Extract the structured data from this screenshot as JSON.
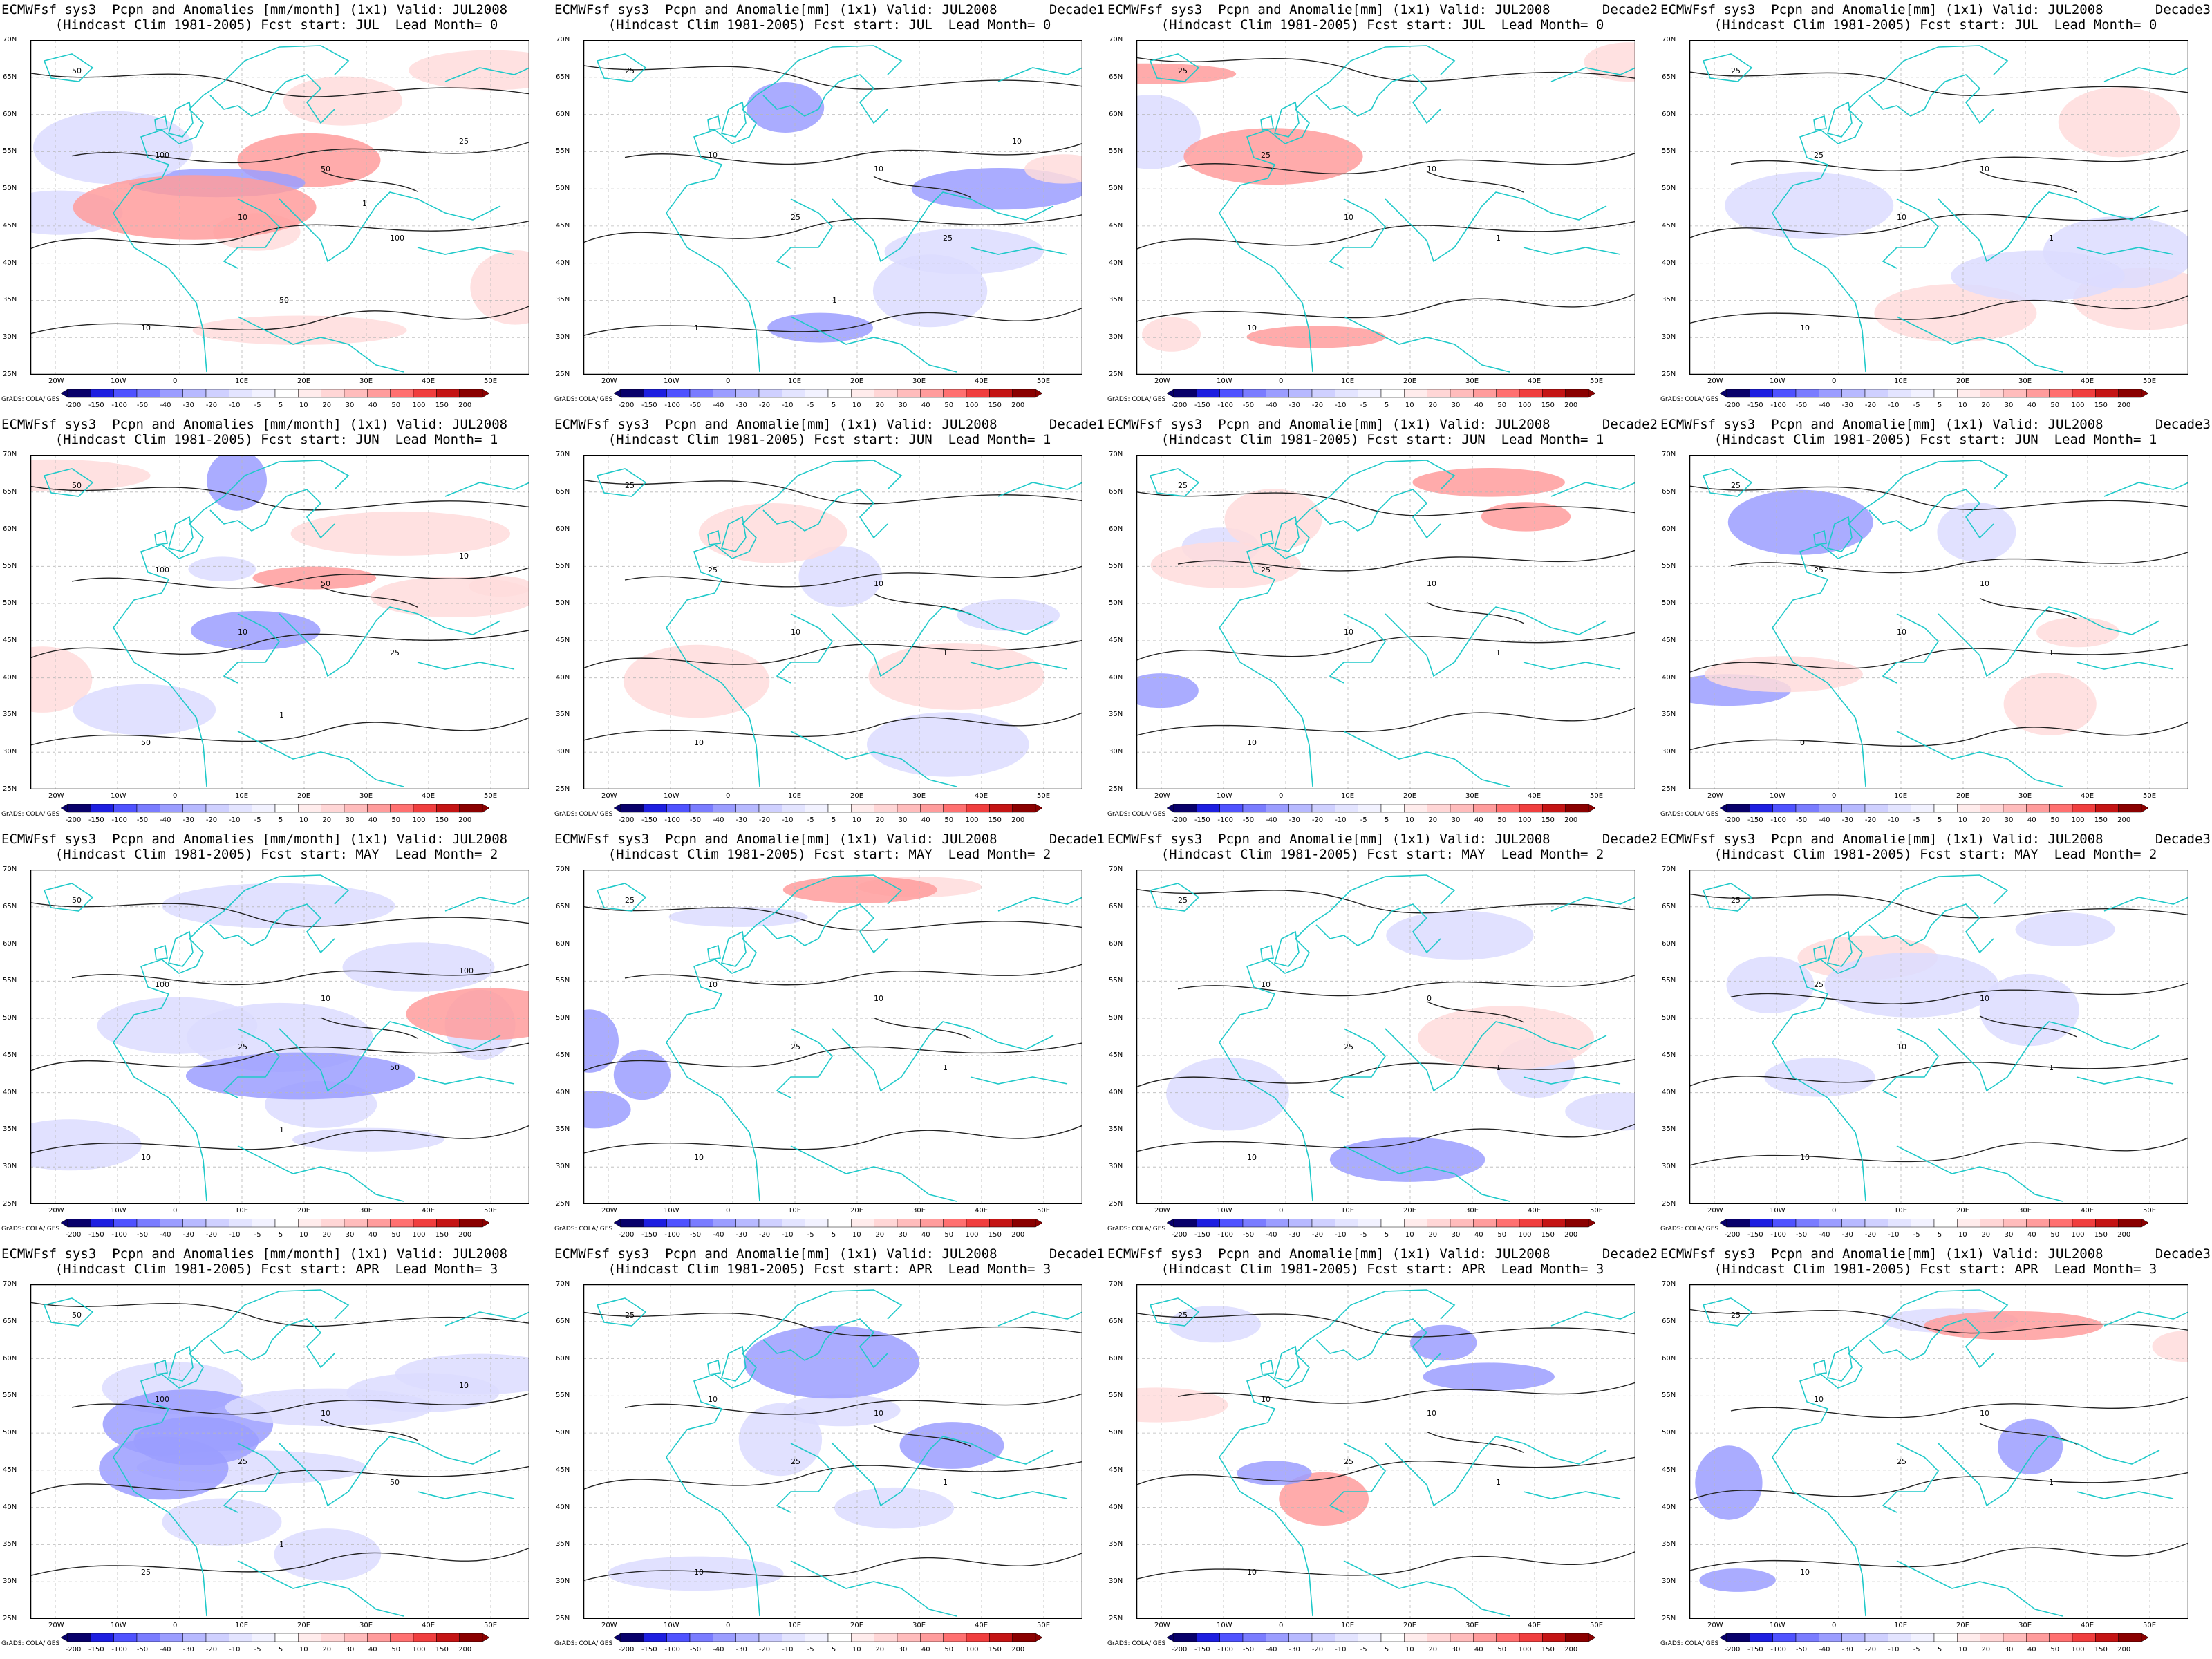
{
  "ticks": {
    "lat": [
      "70N",
      "65N",
      "60N",
      "55N",
      "50N",
      "45N",
      "40N",
      "35N",
      "30N",
      "25N"
    ],
    "lon": [
      "20W",
      "10W",
      "0",
      "10E",
      "20E",
      "30E",
      "40E",
      "50E"
    ]
  },
  "colorbar": {
    "labels": [
      "-200",
      "-150",
      "-100",
      "-50",
      "-40",
      "-30",
      "-20",
      "-10",
      "-5",
      "5",
      "10",
      "20",
      "30",
      "40",
      "50",
      "100",
      "150",
      "200"
    ],
    "colors": [
      "#08006a",
      "#1d1ee0",
      "#4f52ff",
      "#7a7cff",
      "#9b9dff",
      "#b7b9ff",
      "#cfd0ff",
      "#e3e4ff",
      "#f2f2ff",
      "#ffffff",
      "#ffecec",
      "#ffd6d6",
      "#ffbcbc",
      "#ff9c9c",
      "#ff7070",
      "#f03e3e",
      "#c41414",
      "#8a0000"
    ]
  },
  "credit": "GrADS: COLA/IGES",
  "panels": [
    {
      "t1l": "ECMWFsf sys3  Pcpn and Anomalies [mm/month] (1x1) Valid: JUL2008",
      "t1r": "",
      "t2": "(Hindcast Clim 1981-2005) Fcst start: JUL  Lead Month= 0",
      "clabels": [
        "50",
        "100",
        "10",
        "50",
        "100",
        "10",
        "25",
        "50",
        "1"
      ]
    },
    {
      "t1l": "ECMWFsf sys3  Pcpn and Anomalie[mm] (1x1) Valid: JUL2008",
      "t1r": "Decade1",
      "t2": "(Hindcast Clim 1981-2005) Fcst start: JUL  Lead Month= 0",
      "clabels": [
        "25",
        "10",
        "25",
        "10",
        "25",
        "1",
        "10",
        "1"
      ]
    },
    {
      "t1l": "ECMWFsf sys3  Pcpn and Anomalie[mm] (1x1) Valid: JUL2008",
      "t1r": "Decade2",
      "t2": "(Hindcast Clim 1981-2005) Fcst start: JUL  Lead Month= 0",
      "clabels": [
        "25",
        "25",
        "10",
        "10",
        "1",
        "10"
      ]
    },
    {
      "t1l": "ECMWFsf sys3  Pcpn and Anomalie[mm] (1x1) Valid: JUL2008",
      "t1r": "Decade3",
      "t2": "(Hindcast Clim 1981-2005) Fcst start: JUL  Lead Month= 0",
      "clabels": [
        "25",
        "25",
        "10",
        "10",
        "1",
        "10"
      ]
    },
    {
      "t1l": "ECMWFsf sys3  Pcpn and Anomalies [mm/month] (1x1) Valid: JUL2008",
      "t1r": "",
      "t2": "(Hindcast Clim 1981-2005) Fcst start: JUN  Lead Month= 1",
      "clabels": [
        "50",
        "100",
        "10",
        "50",
        "25",
        "50",
        "10",
        "1"
      ]
    },
    {
      "t1l": "ECMWFsf sys3  Pcpn and Anomalie[mm] (1x1) Valid: JUL2008",
      "t1r": "Decade1",
      "t2": "(Hindcast Clim 1981-2005) Fcst start: JUN  Lead Month= 1",
      "clabels": [
        "25",
        "25",
        "10",
        "10",
        "1",
        "10"
      ]
    },
    {
      "t1l": "ECMWFsf sys3  Pcpn and Anomalie[mm] (1x1) Valid: JUL2008",
      "t1r": "Decade2",
      "t2": "(Hindcast Clim 1981-2005) Fcst start: JUN  Lead Month= 1",
      "clabels": [
        "25",
        "25",
        "10",
        "10",
        "1",
        "10"
      ]
    },
    {
      "t1l": "ECMWFsf sys3  Pcpn and Anomalie[mm] (1x1) Valid: JUL2008",
      "t1r": "Decade3",
      "t2": "(Hindcast Clim 1981-2005) Fcst start: JUN  Lead Month= 1",
      "clabels": [
        "25",
        "25",
        "10",
        "10",
        "1",
        "0"
      ]
    },
    {
      "t1l": "ECMWFsf sys3  Pcpn and Anomalies [mm/month] (1x1) Valid: JUL2008",
      "t1r": "",
      "t2": "(Hindcast Clim 1981-2005) Fcst start: MAY  Lead Month= 2",
      "clabels": [
        "50",
        "100",
        "25",
        "10",
        "50",
        "10",
        "100",
        "1"
      ]
    },
    {
      "t1l": "ECMWFsf sys3  Pcpn and Anomalie[mm] (1x1) Valid: JUL2008",
      "t1r": "Decade1",
      "t2": "(Hindcast Clim 1981-2005) Fcst start: MAY  Lead Month= 2",
      "clabels": [
        "25",
        "10",
        "25",
        "10",
        "1",
        "10"
      ]
    },
    {
      "t1l": "ECMWFsf sys3  Pcpn and Anomalie[mm] (1x1) Valid: JUL2008",
      "t1r": "Decade2",
      "t2": "(Hindcast Clim 1981-2005) Fcst start: MAY  Lead Month= 2",
      "clabels": [
        "25",
        "10",
        "25",
        "0",
        "1",
        "10"
      ]
    },
    {
      "t1l": "ECMWFsf sys3  Pcpn and Anomalie[mm] (1x1) Valid: JUL2008",
      "t1r": "Decade3",
      "t2": "(Hindcast Clim 1981-2005) Fcst start: MAY  Lead Month= 2",
      "clabels": [
        "25",
        "25",
        "10",
        "10",
        "1",
        "10"
      ]
    },
    {
      "t1l": "ECMWFsf sys3  Pcpn and Anomalies [mm/month] (1x1) Valid: JUL2008",
      "t1r": "",
      "t2": "(Hindcast Clim 1981-2005) Fcst start: APR  Lead Month= 3",
      "clabels": [
        "50",
        "100",
        "25",
        "10",
        "50",
        "25",
        "10",
        "1"
      ]
    },
    {
      "t1l": "ECMWFsf sys3  Pcpn and Anomalie[mm] (1x1) Valid: JUL2008",
      "t1r": "Decade1",
      "t2": "(Hindcast Clim 1981-2005) Fcst start: APR  Lead Month= 3",
      "clabels": [
        "25",
        "10",
        "25",
        "10",
        "1",
        "10"
      ]
    },
    {
      "t1l": "ECMWFsf sys3  Pcpn and Anomalie[mm] (1x1) Valid: JUL2008",
      "t1r": "Decade2",
      "t2": "(Hindcast Clim 1981-2005) Fcst start: APR  Lead Month= 3",
      "clabels": [
        "25",
        "10",
        "25",
        "10",
        "1",
        "10"
      ]
    },
    {
      "t1l": "ECMWFsf sys3  Pcpn and Anomalie[mm] (1x1) Valid: JUL2008",
      "t1r": "Decade3",
      "t2": "(Hindcast Clim 1981-2005) Fcst start: APR  Lead Month= 3",
      "clabels": [
        "25",
        "10",
        "25",
        "10",
        "1",
        "10"
      ]
    }
  ]
}
